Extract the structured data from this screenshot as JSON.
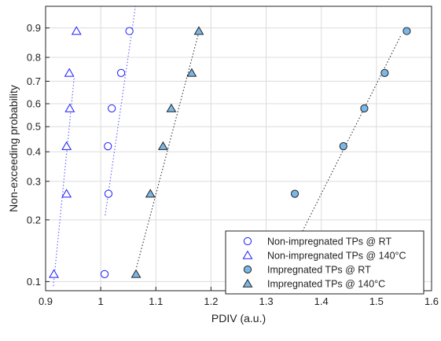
{
  "chart_data": {
    "type": "scatter",
    "title": "",
    "xlabel": "PDIV (a.u.)",
    "ylabel": "Non-exceeding probability",
    "xlim": [
      0.9,
      1.6
    ],
    "x_ticks": [
      0.9,
      1,
      1.1,
      1.2,
      1.3,
      1.4,
      1.5,
      1.6
    ],
    "x_tick_labels": [
      "0.9",
      "1",
      "1.1",
      "1.2",
      "1.3",
      "1.4",
      "1.5",
      "1.6"
    ],
    "ylim": [
      0.09,
      0.95
    ],
    "y_scale": "weibull-probability",
    "y_ticks": [
      0.1,
      0.2,
      0.3,
      0.4,
      0.5,
      0.6,
      0.7,
      0.8,
      0.9
    ],
    "y_tick_labels": [
      "0.1",
      "0.2",
      "0.3",
      "0.4",
      "0.5",
      "0.6",
      "0.7",
      "0.8",
      "0.9"
    ],
    "grid": true,
    "legend_position": "bottom-right",
    "series": [
      {
        "name": "Non-impregnated TPs @ RT",
        "marker": "circle-open",
        "color": "#1a1aff",
        "line_color": "#5a5aff",
        "x": [
          1.007,
          1.014,
          1.013,
          1.02,
          1.037,
          1.052
        ],
        "y": [
          0.109,
          0.264,
          0.421,
          0.579,
          0.736,
          0.891
        ],
        "fit": {
          "x": [
            1.008,
            1.063
          ],
          "y": [
            0.21,
            0.95
          ]
        }
      },
      {
        "name": "Non-impregnated TPs @ 140°C",
        "marker": "triangle-open",
        "color": "#1a1aff",
        "line_color": "#5a5aff",
        "x": [
          0.915,
          0.938,
          0.938,
          0.944,
          0.943,
          0.956
        ],
        "y": [
          0.109,
          0.264,
          0.421,
          0.579,
          0.736,
          0.891
        ],
        "fit": {
          "x": [
            0.914,
            0.952
          ],
          "y": [
            0.095,
            0.72
          ]
        }
      },
      {
        "name": "Impregnated TPs @ RT",
        "marker": "circle-filled",
        "color": "#7ab8e8",
        "line_color": "#333333",
        "x": [
          1.352,
          1.44,
          1.478,
          1.515,
          1.555
        ],
        "y": [
          0.264,
          0.421,
          0.579,
          0.736,
          0.891
        ],
        "fit": {
          "x": [
            1.32,
            1.545
          ],
          "y": [
            0.1,
            0.88
          ]
        }
      },
      {
        "name": "Impregnated TPs @ 140°C",
        "marker": "triangle-filled",
        "color": "#7ab8e8",
        "line_color": "#333333",
        "x": [
          1.064,
          1.09,
          1.113,
          1.128,
          1.165,
          1.178
        ],
        "y": [
          0.109,
          0.264,
          0.421,
          0.579,
          0.736,
          0.891
        ],
        "fit": {
          "x": [
            1.065,
            1.18
          ],
          "y": [
            0.118,
            0.9
          ]
        }
      }
    ]
  }
}
